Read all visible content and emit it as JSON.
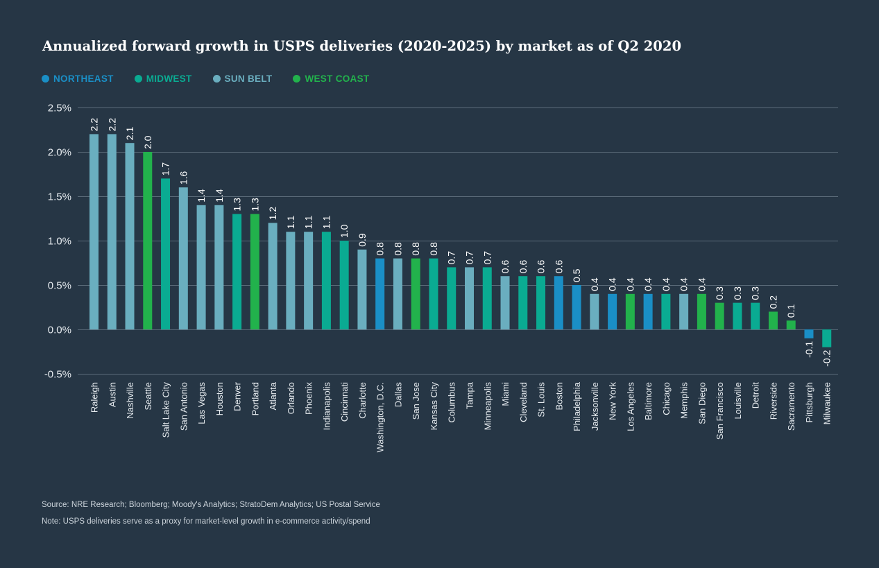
{
  "chart_data": {
    "type": "bar",
    "title": "Annualized forward growth in USPS deliveries (2020-2025) by market as of Q2 2020",
    "ylim": [
      -0.5,
      2.5
    ],
    "yticks": [
      2.5,
      2.0,
      1.5,
      1.0,
      0.5,
      0.0,
      -0.5
    ],
    "ytick_labels": [
      "2.5%",
      "2.0%",
      "1.5%",
      "1.0%",
      "0.5%",
      "0.0%",
      "-0.5%"
    ],
    "grid": true,
    "legend_placement": "top-left",
    "legend": [
      {
        "region": "northeast",
        "name": "NORTHEAST",
        "color": "#1a8fc6"
      },
      {
        "region": "midwest",
        "name": "MIDWEST",
        "color": "#0aab92"
      },
      {
        "region": "sunbelt",
        "name": "SUN BELT",
        "color": "#6aaebf"
      },
      {
        "region": "westcoast",
        "name": "WEST COAST",
        "color": "#22b24c"
      }
    ],
    "categories": [
      "Raleigh",
      "Austin",
      "Nashville",
      "Seattle",
      "Salt Lake City",
      "San Antonio",
      "Las Vegas",
      "Houston",
      "Denver",
      "Portland",
      "Atlanta",
      "Orlando",
      "Phoenix",
      "Indianapolis",
      "Cincinnati",
      "Charlotte",
      "Washington, D.C.",
      "Dallas",
      "San Jose",
      "Kansas City",
      "Columbus",
      "Tampa",
      "Minneapolis",
      "Miami",
      "Cleveland",
      "St. Louis",
      "Boston",
      "Philadelphia",
      "Jacksonville",
      "New York",
      "Los Angeles",
      "Baltimore",
      "Chicago",
      "Memphis",
      "San Diego",
      "San Francisco",
      "Louisville",
      "Detroit",
      "Riverside",
      "Sacramento",
      "Pittsburgh",
      "Milwaukee"
    ],
    "values": [
      2.2,
      2.2,
      2.1,
      2.0,
      1.7,
      1.6,
      1.4,
      1.4,
      1.3,
      1.3,
      1.2,
      1.1,
      1.1,
      1.1,
      1.0,
      0.9,
      0.8,
      0.8,
      0.8,
      0.8,
      0.7,
      0.7,
      0.7,
      0.6,
      0.6,
      0.6,
      0.6,
      0.5,
      0.4,
      0.4,
      0.4,
      0.4,
      0.4,
      0.4,
      0.4,
      0.3,
      0.3,
      0.3,
      0.2,
      0.1,
      -0.1,
      -0.2
    ],
    "value_labels": [
      "2.2",
      "2.2",
      "2.1",
      "2.0",
      "1.7",
      "1.6",
      "1.4",
      "1.4",
      "1.3",
      "1.3",
      "1.2",
      "1.1",
      "1.1",
      "1.1",
      "1.0",
      "0.9",
      "0.8",
      "0.8",
      "0.8",
      "0.8",
      "0.7",
      "0.7",
      "0.7",
      "0.6",
      "0.6",
      "0.6",
      "0.6",
      "0.5",
      "0.4",
      "0.4",
      "0.4",
      "0.4",
      "0.4",
      "0.4",
      "0.4",
      "0.3",
      "0.3",
      "0.3",
      "0.2",
      "0.1",
      "-0.1",
      "-0.2"
    ],
    "regions": [
      "sunbelt",
      "sunbelt",
      "sunbelt",
      "westcoast",
      "midwest",
      "sunbelt",
      "sunbelt",
      "sunbelt",
      "midwest",
      "westcoast",
      "sunbelt",
      "sunbelt",
      "sunbelt",
      "midwest",
      "midwest",
      "sunbelt",
      "northeast",
      "sunbelt",
      "westcoast",
      "midwest",
      "midwest",
      "sunbelt",
      "midwest",
      "sunbelt",
      "midwest",
      "midwest",
      "northeast",
      "northeast",
      "sunbelt",
      "northeast",
      "westcoast",
      "northeast",
      "midwest",
      "sunbelt",
      "westcoast",
      "westcoast",
      "midwest",
      "midwest",
      "westcoast",
      "westcoast",
      "northeast",
      "midwest"
    ]
  },
  "footnotes": {
    "source": "Source: NRE Research; Bloomberg; Moody's Analytics; StratoDem Analytics; US Postal Service",
    "note": "Note: USPS deliveries serve as a proxy for market-level growth in e-commerce activity/spend"
  }
}
